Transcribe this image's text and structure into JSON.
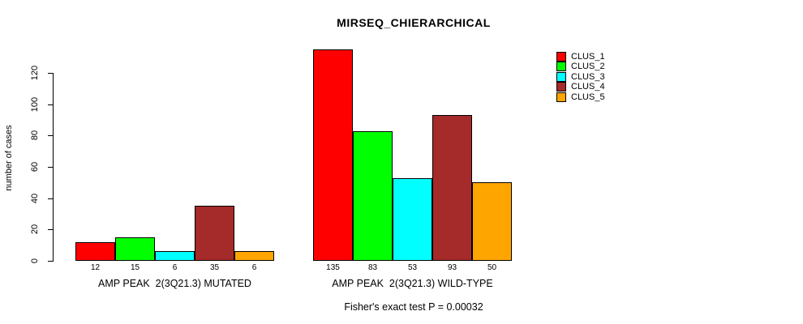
{
  "chart": {
    "title": "MIRSEQ_CHIERARCHICAL",
    "ylabel": "number of cases",
    "footer": "Fisher's exact test P = 0.00032"
  },
  "legend": {
    "entries": [
      {
        "label": "CLUS_1",
        "color": "#FF0000"
      },
      {
        "label": "CLUS_2",
        "color": "#00FF00"
      },
      {
        "label": "CLUS_3",
        "color": "#00FFFF"
      },
      {
        "label": "CLUS_4",
        "color": "#A52A2A"
      },
      {
        "label": "CLUS_5",
        "color": "#FFA500"
      }
    ]
  },
  "chart_data": {
    "type": "bar",
    "title": "MIRSEQ_CHIERARCHICAL",
    "xlabel": "",
    "ylabel": "number of cases",
    "ylim": [
      0,
      135
    ],
    "yticks": [
      0,
      20,
      40,
      60,
      80,
      100,
      120
    ],
    "grid": false,
    "legend_position": "top-right",
    "categories": [
      "AMP PEAK  2(3Q21.3) MUTATED",
      "AMP PEAK  2(3Q21.3) WILD-TYPE"
    ],
    "series": [
      {
        "name": "CLUS_1",
        "color": "#FF0000",
        "values": [
          12,
          135
        ]
      },
      {
        "name": "CLUS_2",
        "color": "#00FF00",
        "values": [
          15,
          83
        ]
      },
      {
        "name": "CLUS_3",
        "color": "#00FFFF",
        "values": [
          6,
          53
        ]
      },
      {
        "name": "CLUS_4",
        "color": "#A52A2A",
        "values": [
          35,
          93
        ]
      },
      {
        "name": "CLUS_5",
        "color": "#FFA500",
        "values": [
          6,
          50
        ]
      }
    ],
    "bar_value_labels": [
      [
        12,
        15,
        6,
        35,
        6
      ],
      [
        135,
        83,
        53,
        93,
        50
      ]
    ],
    "annotation": "Fisher's exact test P = 0.00032"
  }
}
